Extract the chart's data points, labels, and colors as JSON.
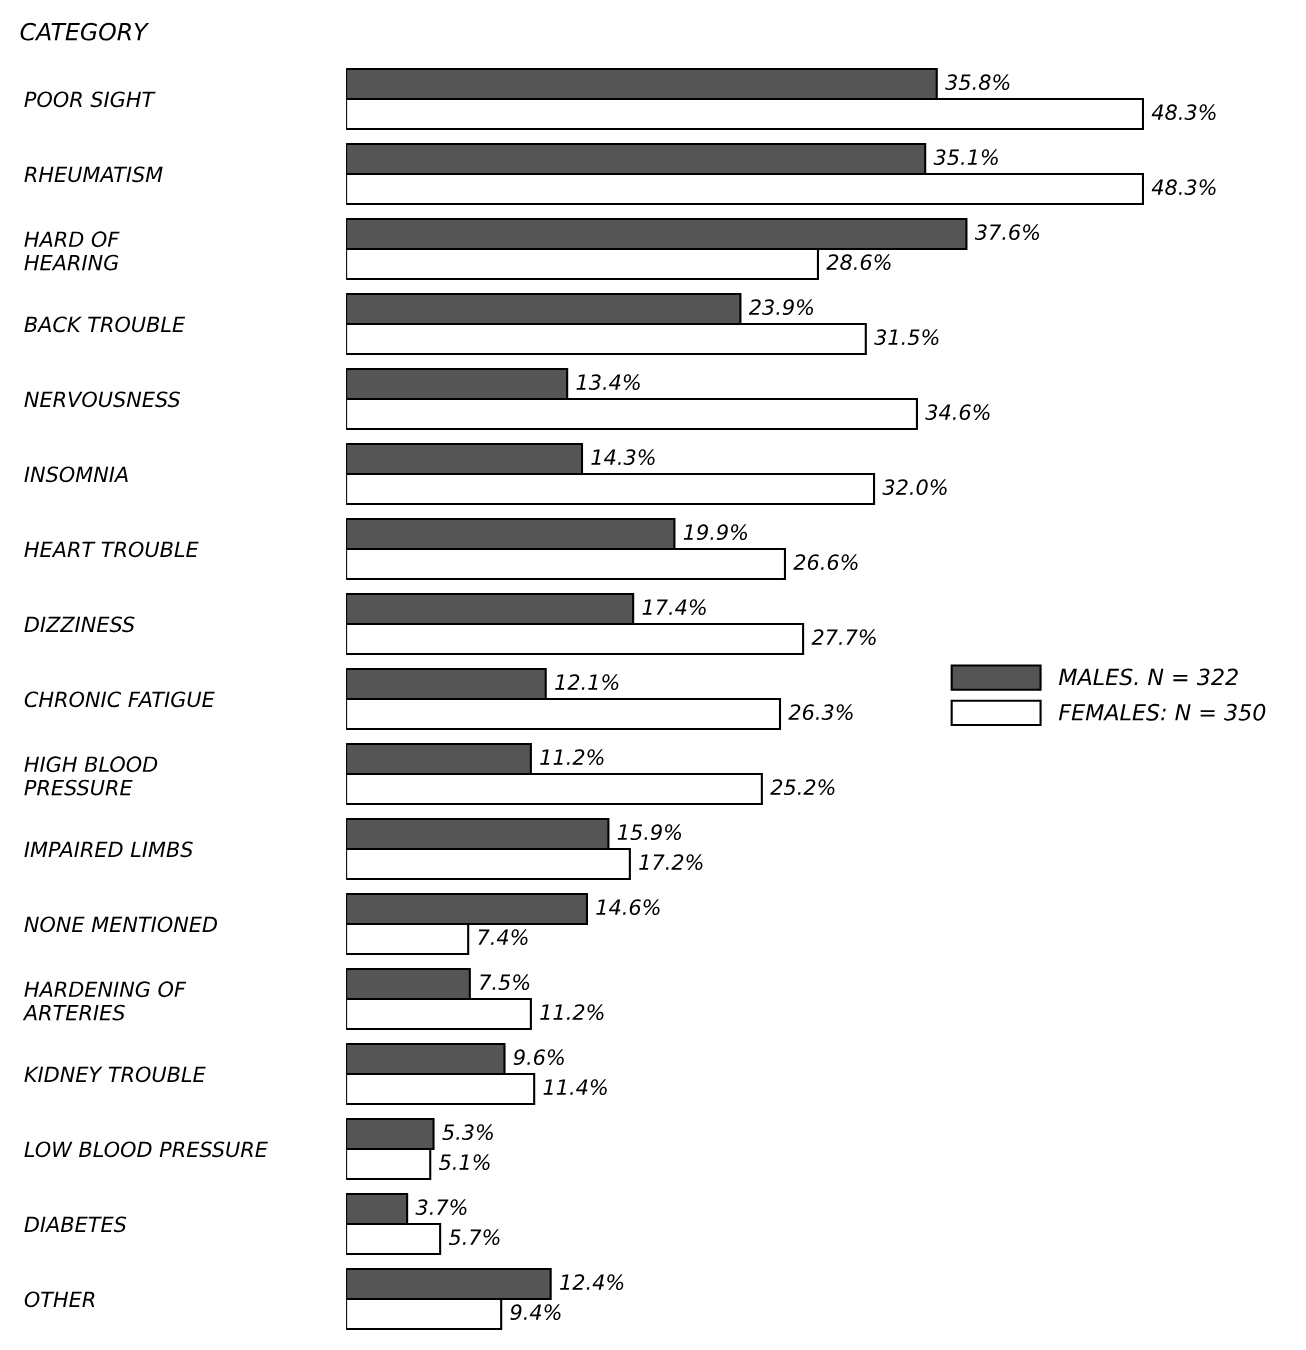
{
  "chart_data": {
    "type": "bar",
    "orientation": "horizontal",
    "ylabel": "CATEGORY",
    "categories": [
      "POOR SIGHT",
      "RHEUMATISM",
      "HARD OF\nHEARING",
      "BACK TROUBLE",
      "NERVOUSNESS",
      "INSOMNIA",
      "HEART TROUBLE",
      "DIZZINESS",
      "CHRONIC FATIGUE",
      "HIGH BLOOD\nPRESSURE",
      "IMPAIRED LIMBS",
      "NONE MENTIONED",
      "HARDENING OF\nARTERIES",
      "KIDNEY TROUBLE",
      "LOW BLOOD PRESSURE",
      "DIABETES",
      "OTHER"
    ],
    "series": [
      {
        "name": "MALES. N = 322",
        "color": "#555555",
        "values": [
          35.8,
          35.1,
          37.6,
          23.9,
          13.4,
          14.3,
          19.9,
          17.4,
          12.1,
          11.2,
          15.9,
          14.6,
          7.5,
          9.6,
          5.3,
          3.7,
          12.4
        ],
        "value_labels": [
          "35.8%",
          "35.1%",
          "37.6%",
          "23.9%",
          "13.4%",
          "14.3%",
          "19.9%",
          "17.4%",
          "12.1%",
          "11.2%",
          "15.9%",
          "14.6%",
          "7.5%",
          "9.6%",
          "5.3%",
          "3.7%",
          "12.4%"
        ]
      },
      {
        "name": "FEMALES: N = 350",
        "color": "#ffffff",
        "values": [
          48.3,
          48.3,
          28.6,
          31.5,
          34.6,
          32.0,
          26.6,
          27.7,
          26.3,
          25.2,
          17.2,
          7.4,
          11.2,
          11.4,
          5.1,
          5.7,
          9.4
        ],
        "value_labels": [
          "48.3%",
          "48.3%",
          "28.6%",
          "31.5%",
          "34.6%",
          "32.0%",
          "26.6%",
          "27.7%",
          "26.3%",
          "25.2%",
          "17.2%",
          "7.4%",
          "11.2%",
          "11.4%",
          "5.1%",
          "5.7%",
          "9.4%"
        ]
      }
    ],
    "legend": "right",
    "grid": false
  }
}
